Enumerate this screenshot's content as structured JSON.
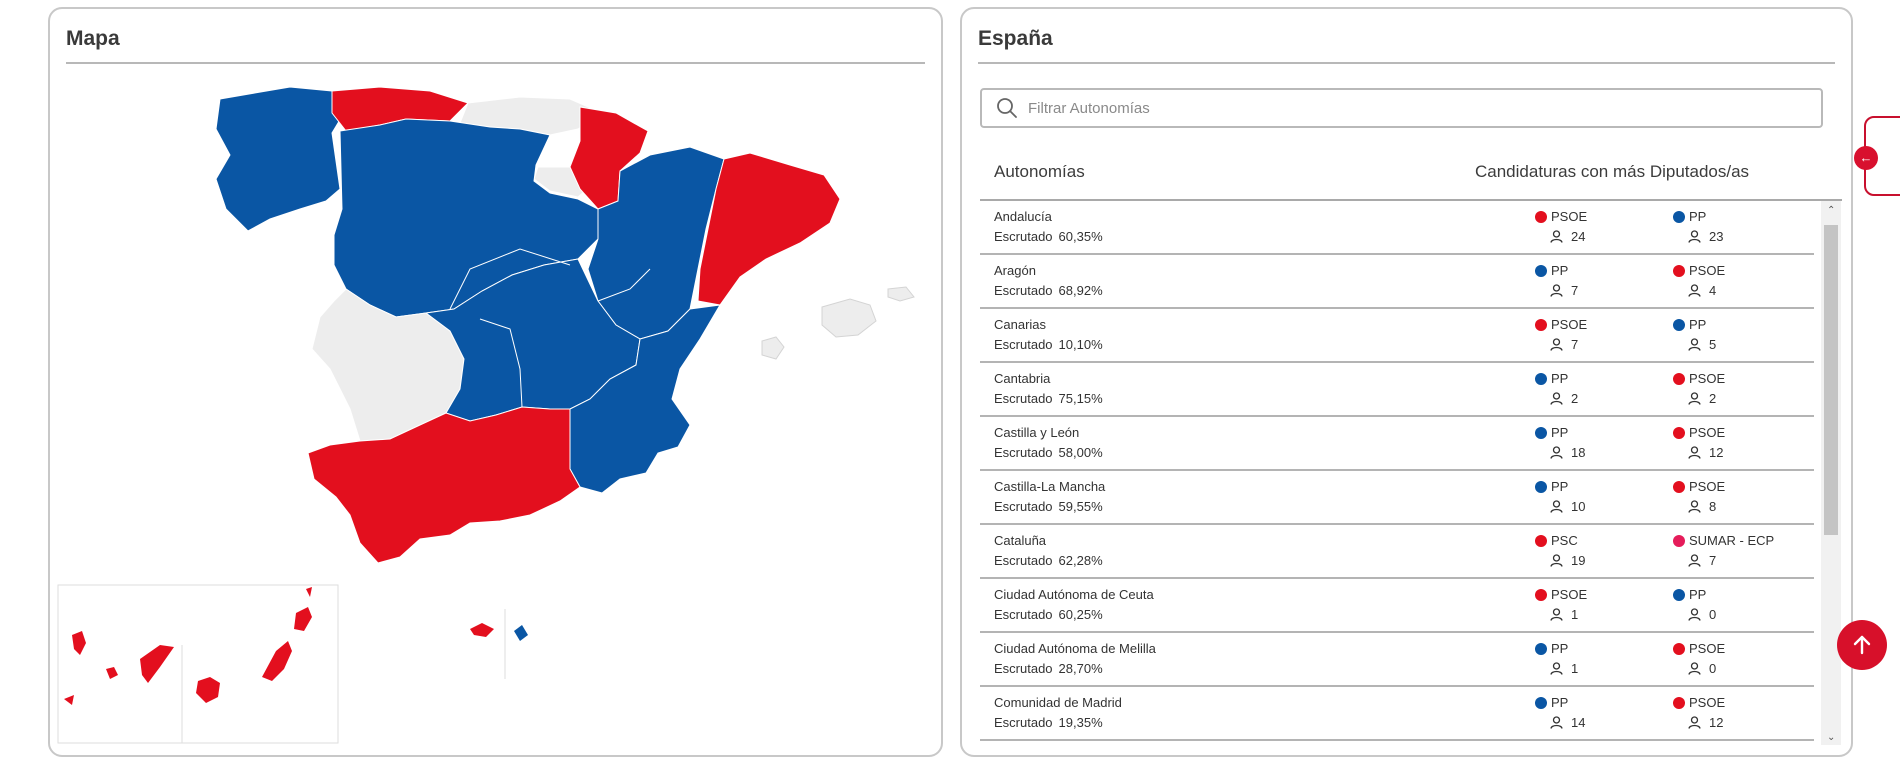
{
  "map_panel": {
    "title": "Mapa"
  },
  "spain_panel": {
    "title": "España",
    "search": {
      "placeholder": "Filtrar Autonomías",
      "value": ""
    },
    "columns": {
      "autonomias": "Autonomías",
      "candidaturas": "Candidaturas con más Diputados/as"
    },
    "escrutado_label": "Escrutado",
    "rows": [
      {
        "name": "Andalucía",
        "escrutado": "60,35%",
        "p1": {
          "party": "PSOE",
          "color": "#e30f1e",
          "seats": "24"
        },
        "p2": {
          "party": "PP",
          "color": "#0a56a4",
          "seats": "23"
        }
      },
      {
        "name": "Aragón",
        "escrutado": "68,92%",
        "p1": {
          "party": "PP",
          "color": "#0a56a4",
          "seats": "7"
        },
        "p2": {
          "party": "PSOE",
          "color": "#e30f1e",
          "seats": "4"
        }
      },
      {
        "name": "Canarias",
        "escrutado": "10,10%",
        "p1": {
          "party": "PSOE",
          "color": "#e30f1e",
          "seats": "7"
        },
        "p2": {
          "party": "PP",
          "color": "#0a56a4",
          "seats": "5"
        }
      },
      {
        "name": "Cantabria",
        "escrutado": "75,15%",
        "p1": {
          "party": "PP",
          "color": "#0a56a4",
          "seats": "2"
        },
        "p2": {
          "party": "PSOE",
          "color": "#e30f1e",
          "seats": "2"
        }
      },
      {
        "name": "Castilla y León",
        "escrutado": "58,00%",
        "p1": {
          "party": "PP",
          "color": "#0a56a4",
          "seats": "18"
        },
        "p2": {
          "party": "PSOE",
          "color": "#e30f1e",
          "seats": "12"
        }
      },
      {
        "name": "Castilla-La Mancha",
        "escrutado": "59,55%",
        "p1": {
          "party": "PP",
          "color": "#0a56a4",
          "seats": "10"
        },
        "p2": {
          "party": "PSOE",
          "color": "#e30f1e",
          "seats": "8"
        }
      },
      {
        "name": "Cataluña",
        "escrutado": "62,28%",
        "p1": {
          "party": "PSC",
          "color": "#e30f1e",
          "seats": "19"
        },
        "p2": {
          "party": "SUMAR - ECP",
          "color": "#e51c5a",
          "seats": "7"
        }
      },
      {
        "name": "Ciudad Autónoma de Ceuta",
        "escrutado": "60,25%",
        "p1": {
          "party": "PSOE",
          "color": "#e30f1e",
          "seats": "1"
        },
        "p2": {
          "party": "PP",
          "color": "#0a56a4",
          "seats": "0"
        }
      },
      {
        "name": "Ciudad Autónoma de Melilla",
        "escrutado": "28,70%",
        "p1": {
          "party": "PP",
          "color": "#0a56a4",
          "seats": "1"
        },
        "p2": {
          "party": "PSOE",
          "color": "#e30f1e",
          "seats": "0"
        }
      },
      {
        "name": "Comunidad de Madrid",
        "escrutado": "19,35%",
        "p1": {
          "party": "PP",
          "color": "#0a56a4",
          "seats": "14"
        },
        "p2": {
          "party": "PSOE",
          "color": "#e30f1e",
          "seats": "12"
        }
      }
    ]
  },
  "colors": {
    "pp": "#0a56a4",
    "psoe": "#e30f1e",
    "no_data": "#ededed",
    "accent": "#d7102a"
  },
  "icons": {
    "search": "search-icon",
    "seats": "person-icon",
    "side_tab": "arrow-left-icon",
    "back_to_top": "arrow-up-icon"
  }
}
